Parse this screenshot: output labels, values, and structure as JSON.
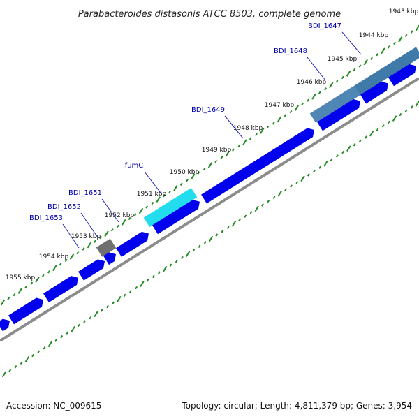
{
  "title": "Parabacteroides distasonis ATCC 8503, complete genome",
  "footer": {
    "accession": "Accession: NC_009615",
    "topology": "Topology: circular; Length: 4,811,379 bp; Genes: 3,954"
  },
  "colors": {
    "gene_fwd": "#0000ee",
    "gene_highlight_fumC": "#22ddee",
    "gene_highlight_blue": "#4f86b4",
    "gene_gray": "#707070",
    "backbone": "#888888",
    "gc_dots": "#228b22",
    "label_text": "#0000aa"
  },
  "kbp_ticks": [
    "1943 kbp",
    "1944 kbp",
    "1945 kbp",
    "1946 kbp",
    "1947 kbp",
    "1948 kbp",
    "1949 kbp",
    "1950 kbp",
    "1951 kbp",
    "1952 kbp",
    "1953 kbp",
    "1954 kbp",
    "1955 kbp"
  ],
  "gene_labels": [
    "BDI_1647",
    "BDI_1648",
    "BDI_1649",
    "fumC",
    "BDI_1651",
    "BDI_1652",
    "BDI_1653"
  ]
}
